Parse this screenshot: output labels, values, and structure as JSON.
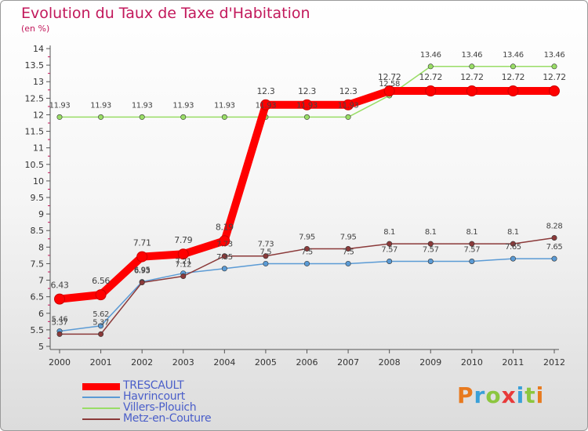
{
  "chart_data": {
    "type": "line",
    "title": "Evolution du Taux de Taxe d'Habitation",
    "subtitle": "(en %)",
    "x": [
      "2000",
      "2001",
      "2002",
      "2003",
      "2004",
      "2005",
      "2006",
      "2007",
      "2008",
      "2009",
      "2010",
      "2011",
      "2012"
    ],
    "ylim": [
      5,
      14
    ],
    "yticks": [
      "5",
      "5.5",
      "6",
      "6.5",
      "7",
      "7.5",
      "8",
      "8.5",
      "9",
      "9.5",
      "10",
      "10.5",
      "11",
      "11.5",
      "12",
      "12.5",
      "13",
      "13.5",
      "14"
    ],
    "grid": false,
    "legend_position": "bottom-left",
    "series": [
      {
        "name": "TRESCAULT",
        "color": "#ff0000",
        "values": [
          6.43,
          6.56,
          7.71,
          7.79,
          8.19,
          12.3,
          12.3,
          12.3,
          12.72,
          12.72,
          12.72,
          12.72,
          12.72
        ],
        "labels": [
          "6.43",
          "6.56",
          "7.71",
          "7.79",
          "8.19",
          "12.3",
          "12.3",
          "12.3",
          "12.72",
          "12.72",
          "12.72",
          "12.72",
          "12.72"
        ]
      },
      {
        "name": "Havrincourt",
        "color": "#5b9bd5",
        "values": [
          5.46,
          5.62,
          6.95,
          7.21,
          7.35,
          7.5,
          7.5,
          7.5,
          7.57,
          7.57,
          7.57,
          7.65,
          7.65
        ],
        "labels": [
          "5.46",
          "5.62",
          "6.95",
          "7.21",
          "7.35",
          "7.5",
          "7.5",
          "7.5",
          "7.57",
          "7.57",
          "7.57",
          "7.65",
          "7.65"
        ]
      },
      {
        "name": "Villers-Plouich",
        "color": "#99dd66",
        "values": [
          11.93,
          11.93,
          11.93,
          11.93,
          11.93,
          11.93,
          11.93,
          11.93,
          12.58,
          13.46,
          13.46,
          13.46,
          13.46
        ],
        "labels": [
          "11.93",
          "11.93",
          "11.93",
          "11.93",
          "11.93",
          "11.93",
          "11.93",
          "11.93",
          "12.58",
          "13.46",
          "13.46",
          "13.46",
          "13.46"
        ]
      },
      {
        "name": "Metz-en-Couture",
        "color": "#8b3a3a",
        "values": [
          5.37,
          5.37,
          6.93,
          7.12,
          7.73,
          7.73,
          7.95,
          7.95,
          8.1,
          8.1,
          8.1,
          8.1,
          8.28
        ],
        "labels": [
          "5.37",
          "5.37",
          "6.93",
          "7.12",
          "7.73",
          "7.73",
          "7.95",
          "7.95",
          "8.1",
          "8.1",
          "8.1",
          "8.1",
          "8.28"
        ]
      }
    ]
  },
  "logo": {
    "letters": [
      "P",
      "r",
      "o",
      "x",
      "i",
      "t",
      "i"
    ]
  }
}
